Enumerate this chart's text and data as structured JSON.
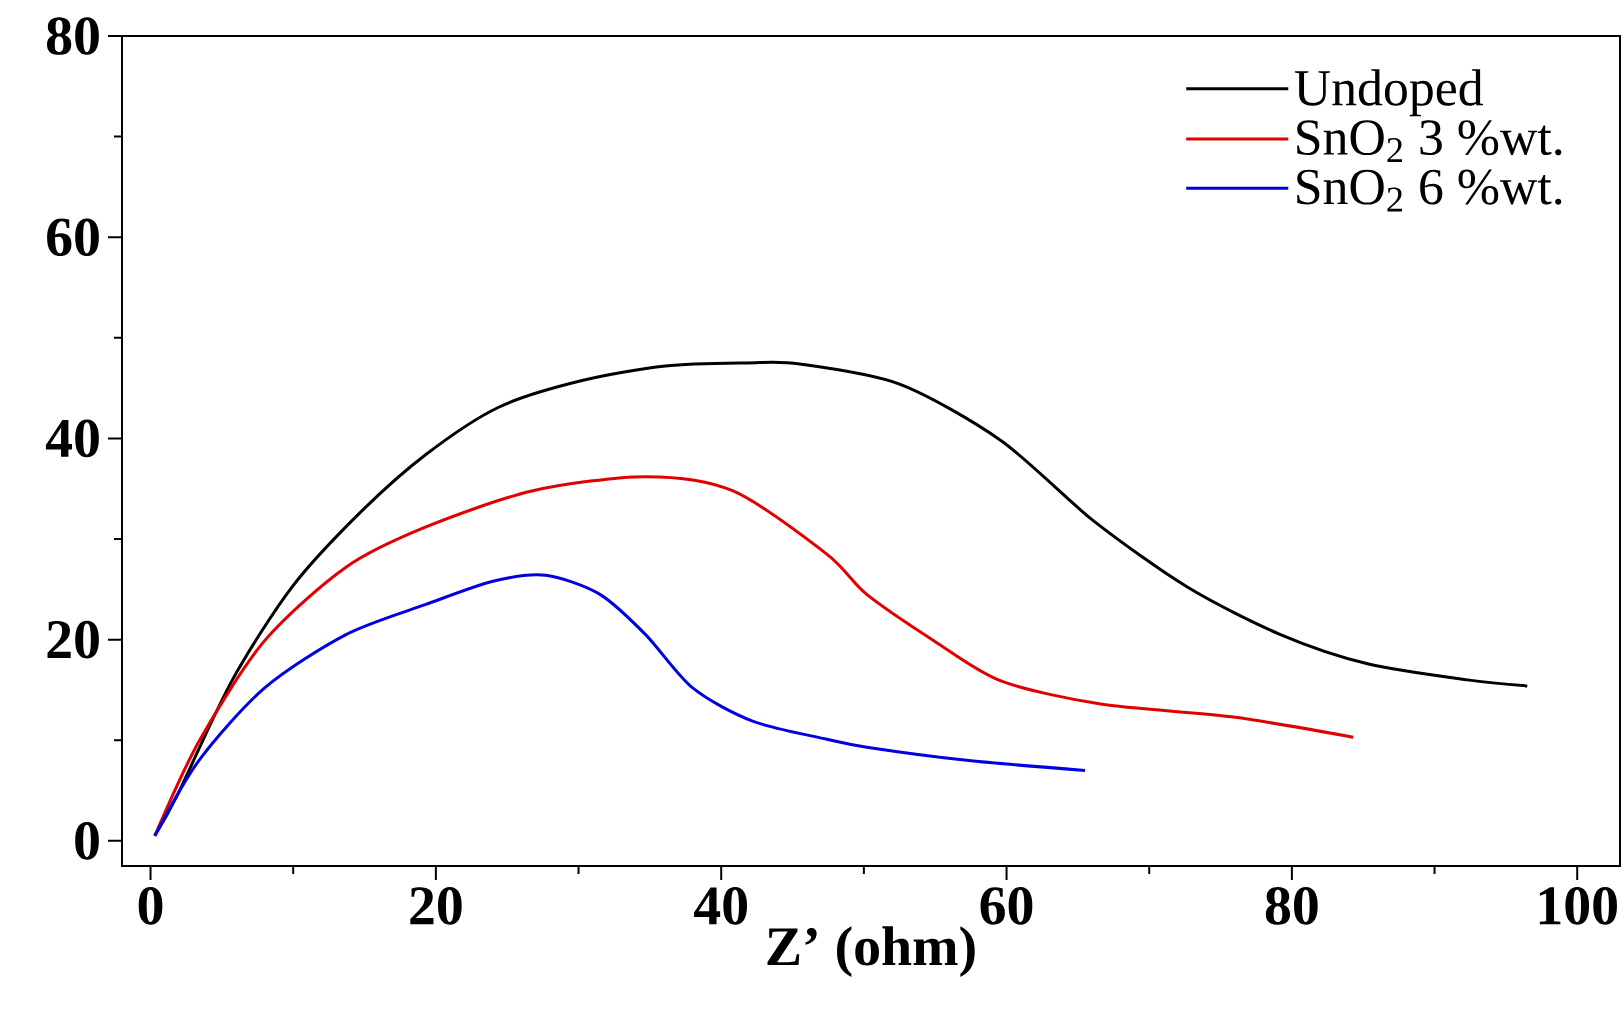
{
  "chart_data": {
    "type": "line",
    "xlabel": "Z’ (ohm)",
    "xlim": [
      -2,
      103
    ],
    "ylim": [
      -2.5,
      80
    ],
    "xticks": [
      0,
      {
        "value": 10,
        "label": null
      },
      20,
      {
        "value": 30,
        "label": null
      },
      40,
      {
        "value": 50,
        "label": null
      },
      60,
      {
        "value": 70,
        "label": null
      },
      80,
      {
        "value": 90,
        "label": null
      },
      100
    ],
    "yticks": [
      0,
      {
        "value": 10,
        "label": null
      },
      20,
      {
        "value": 30,
        "label": null
      },
      40,
      {
        "value": 50,
        "label": null
      },
      60,
      {
        "value": 70,
        "label": null
      },
      80
    ],
    "legend": "top right",
    "line_style": "solid",
    "series": [
      {
        "name": "Undoped",
        "color": "#000000",
        "x": [
          0.3,
          1.9,
          5.7,
          9.9,
          14.6,
          19.3,
          24.4,
          30.1,
          36.1,
          41.8,
          45.5,
          52.5,
          59.6,
          66.1,
          72.7,
          79.2,
          85.3,
          92.3,
          96.5
        ],
        "values": [
          0.5,
          4.6,
          15.9,
          25.2,
          32.5,
          38.4,
          43.1,
          45.7,
          47.2,
          47.5,
          47.4,
          45.4,
          39.8,
          31.8,
          25.2,
          20.5,
          17.6,
          16.0,
          15.4
        ]
      },
      {
        "name": "SnO$_{2}$ 3 %wt.",
        "color": "#e00000",
        "x": [
          0.3,
          3.4,
          8.0,
          13.7,
          19.3,
          26.8,
          34.7,
          40.8,
          47.4,
          50.2,
          54.9,
          59.6,
          66.6,
          75.9,
          84.3
        ],
        "values": [
          0.5,
          9.9,
          19.9,
          27.2,
          31.2,
          34.8,
          36.2,
          34.8,
          28.5,
          24.5,
          19.9,
          15.9,
          13.6,
          12.3,
          10.3
        ]
      },
      {
        "name": "SnO$_{2}$ 6 %wt.",
        "color": "#0000e0",
        "x": [
          0.3,
          3.4,
          8.0,
          13.7,
          19.3,
          24.0,
          27.7,
          31.5,
          34.7,
          38.0,
          42.2,
          47.4,
          50.2,
          57.2,
          65.5
        ],
        "values": [
          0.5,
          8.0,
          15.2,
          20.5,
          23.5,
          25.8,
          26.4,
          24.5,
          20.5,
          15.2,
          11.9,
          10.1,
          9.3,
          8.0,
          7.0
        ]
      }
    ]
  }
}
